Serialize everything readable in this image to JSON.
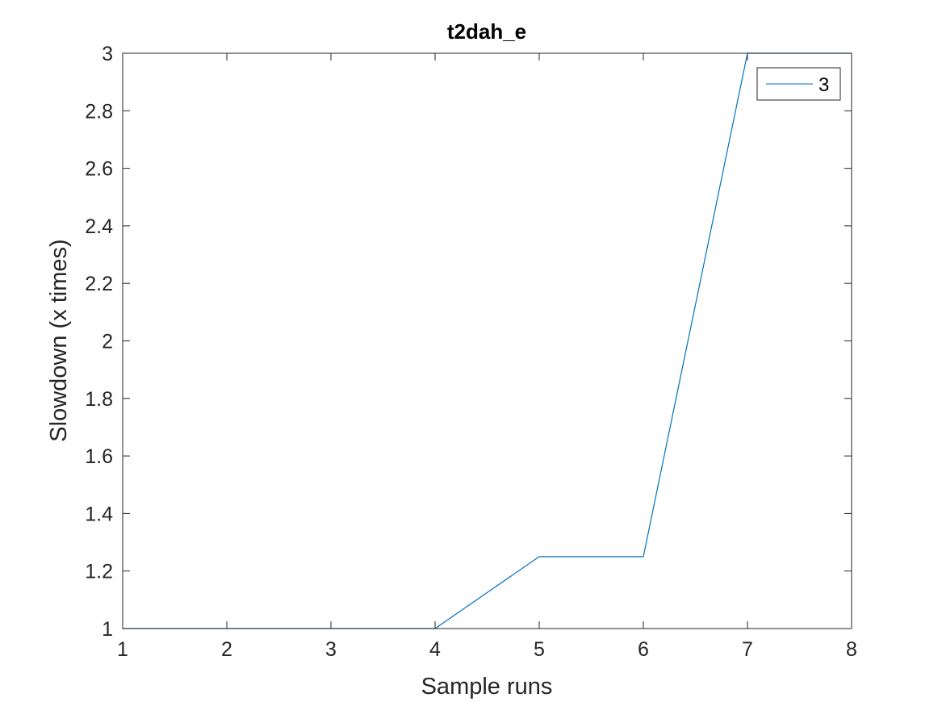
{
  "chart_data": {
    "type": "line",
    "title": "t2dah_e",
    "xlabel": "Sample runs",
    "ylabel": "Slowdown (x times)",
    "xlim": [
      1,
      8
    ],
    "ylim": [
      1,
      3
    ],
    "xticks": [
      "1",
      "2",
      "3",
      "4",
      "5",
      "6",
      "7",
      "8"
    ],
    "yticks": [
      "1",
      "1.2",
      "1.4",
      "1.6",
      "1.8",
      "2",
      "2.2",
      "2.4",
      "2.6",
      "2.8",
      "3"
    ],
    "grid": false,
    "legend_position": "top-right",
    "x": [
      1,
      2,
      3,
      4,
      5,
      6,
      7,
      8
    ],
    "series": [
      {
        "name": "3",
        "color": "#0072bd",
        "values": [
          1,
          1,
          1,
          1,
          1.25,
          1.25,
          3,
          3
        ]
      }
    ]
  }
}
